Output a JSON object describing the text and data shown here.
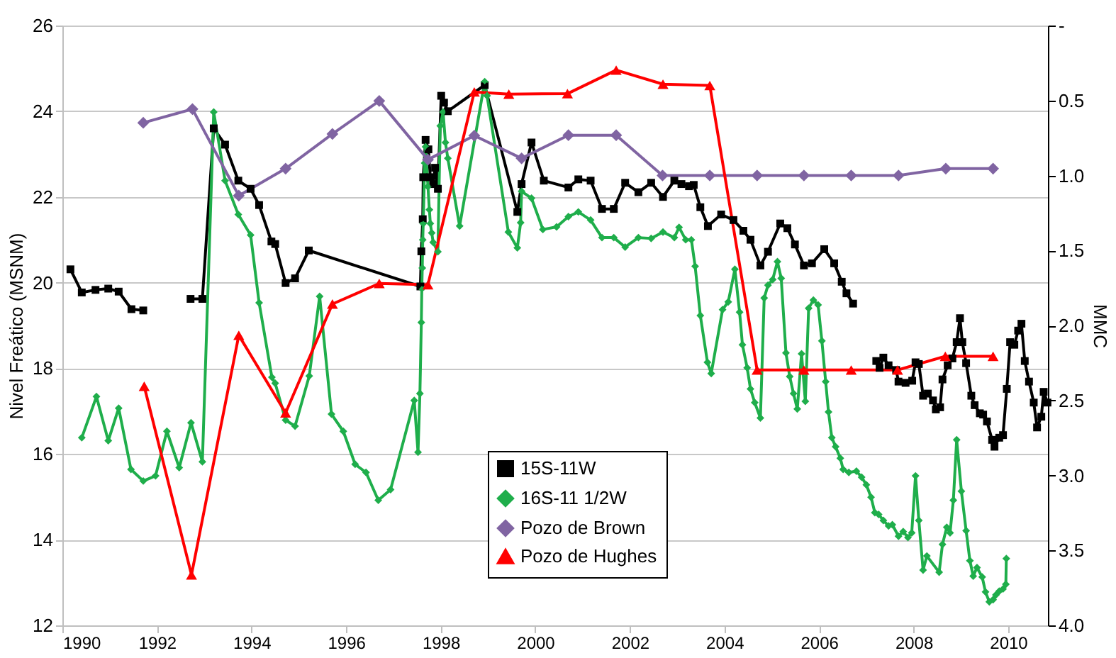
{
  "chart_data": {
    "type": "line",
    "ylabel": "Nivel Freático (MSNM)",
    "y2label": "MMC",
    "xlim": [
      1990,
      2010.84
    ],
    "xticks": [
      1990,
      1992,
      1994,
      1996,
      1998,
      2000,
      2002,
      2004,
      2006,
      2008,
      2010
    ],
    "ylim": [
      12,
      26
    ],
    "yticks": [
      12,
      14,
      16,
      18,
      20,
      22,
      24,
      26
    ],
    "y2lim": [
      4,
      0
    ],
    "y2ticks": [
      {
        "value": 0,
        "label": "-"
      },
      0.5,
      {
        "value": 1,
        "label": "1.0"
      },
      1.5,
      {
        "value": 2,
        "label": "2.0"
      },
      2.5,
      {
        "value": 3,
        "label": "3.0"
      },
      3.5,
      {
        "value": 4,
        "label": "4.0"
      }
    ],
    "grid": "y",
    "legend": "bottom",
    "series": [
      {
        "name": "15S-11W",
        "color": "#000000",
        "marker": "square",
        "x": [
          1990.17,
          1990.41,
          1990.7,
          1990.97,
          1991.19,
          1991.46,
          1991.71,
          1992.2,
          1992.71,
          1992.96,
          1993.2,
          1993.44,
          1993.72,
          1993.98,
          1994.16,
          1994.42,
          1994.5,
          1994.72,
          1994.92,
          1995.21,
          1997.57,
          1997.59,
          1997.62,
          1997.63,
          1997.68,
          1997.74,
          1997.78,
          1997.84,
          1997.88,
          1997.94,
          1998.01,
          1998.07,
          1998.15,
          1998.93,
          1999.62,
          1999.71,
          1999.92,
          2000.18,
          2000.7,
          2000.91,
          2001.17,
          2001.41,
          2001.66,
          2001.9,
          2002.18,
          2002.45,
          2002.7,
          2002.94,
          2003.09,
          2003.25,
          2003.35,
          2003.49,
          2003.65,
          2003.93,
          2004.19,
          2004.4,
          2004.55,
          2004.76,
          2004.92,
          2005.18,
          2005.33,
          2005.49,
          2005.68,
          2005.85,
          2006.11,
          2006.32,
          2006.48,
          2006.58,
          2006.72,
          2007.0,
          2007.21,
          2007.28,
          2007.36,
          2007.47,
          2007.63,
          2007.68,
          2007.83,
          2007.97,
          2008.04,
          2008.11,
          2008.2,
          2008.3,
          2008.41,
          2008.47,
          2008.56,
          2008.61,
          2008.72,
          2008.82,
          2008.91,
          2008.98,
          2009.03,
          2009.11,
          2009.22,
          2009.29,
          2009.4,
          2009.47,
          2009.55,
          2009.66,
          2009.71,
          2009.81,
          2009.89,
          2009.97,
          2010.04,
          2010.13,
          2010.21,
          2010.28,
          2010.35,
          2010.44,
          2010.54,
          2010.61,
          2010.7,
          2010.75,
          2010.83
        ],
        "values": [
          20.31,
          19.77,
          19.83,
          19.86,
          19.79,
          19.38,
          19.35,
          null,
          19.62,
          19.62,
          23.6,
          23.22,
          22.38,
          22.19,
          21.81,
          20.96,
          20.9,
          19.99,
          20.1,
          20.75,
          19.91,
          20.73,
          21.48,
          22.46,
          23.33,
          23.11,
          22.46,
          22.3,
          22.68,
          22.19,
          24.36,
          24.2,
          24.0,
          24.61,
          21.65,
          22.3,
          23.27,
          22.38,
          22.22,
          22.41,
          22.38,
          21.72,
          21.72,
          22.33,
          22.11,
          22.33,
          22.0,
          22.38,
          22.3,
          22.25,
          22.28,
          21.76,
          21.32,
          21.59,
          21.46,
          21.21,
          21.0,
          20.4,
          20.72,
          21.38,
          21.27,
          20.89,
          20.4,
          20.45,
          20.78,
          20.45,
          20.02,
          19.75,
          19.51,
          null,
          18.17,
          18.01,
          18.25,
          18.07,
          17.96,
          17.69,
          17.66,
          17.71,
          18.14,
          18.1,
          17.36,
          17.41,
          17.25,
          17.04,
          17.09,
          17.74,
          18.07,
          18.23,
          18.61,
          19.17,
          18.61,
          18.12,
          17.36,
          17.14,
          16.95,
          16.92,
          16.76,
          16.33,
          16.17,
          16.38,
          16.44,
          17.52,
          18.61,
          18.55,
          18.88,
          19.04,
          18.17,
          17.69,
          17.2,
          16.62,
          16.87,
          17.45,
          17.2
        ]
      },
      {
        "name": "16S-11 1/2W",
        "color": "#1fae4b",
        "marker": "diamond",
        "x": [
          1990.41,
          1990.72,
          1990.97,
          1991.19,
          1991.45,
          1991.71,
          1991.97,
          1992.21,
          1992.47,
          1992.72,
          1992.96,
          1993.2,
          1993.44,
          1993.72,
          1993.98,
          1994.16,
          1994.43,
          1994.5,
          1994.72,
          1994.92,
          1995.22,
          1995.44,
          1995.69,
          1995.94,
          1996.19,
          1996.42,
          1996.68,
          1996.94,
          1997.44,
          1997.52,
          1997.56,
          1997.59,
          1997.6,
          1997.61,
          1997.62,
          1997.63,
          1997.66,
          1997.68,
          1997.73,
          1997.76,
          1997.78,
          1997.81,
          1997.84,
          1997.94,
          1997.99,
          1998.05,
          1998.1,
          1998.15,
          1998.4,
          1998.93,
          1998.98,
          1999.43,
          1999.62,
          1999.69,
          1999.71,
          1999.92,
          2000.16,
          2000.45,
          2000.7,
          2000.91,
          2001.17,
          2001.41,
          2001.66,
          2001.9,
          2002.18,
          2002.45,
          2002.7,
          2002.94,
          2003.04,
          2003.18,
          2003.3,
          2003.38,
          2003.49,
          2003.64,
          2003.72,
          2003.96,
          2004.08,
          2004.22,
          2004.32,
          2004.38,
          2004.48,
          2004.55,
          2004.64,
          2004.76,
          2004.84,
          2004.92,
          2005.02,
          2005.12,
          2005.2,
          2005.3,
          2005.38,
          2005.46,
          2005.54,
          2005.63,
          2005.71,
          2005.78,
          2005.88,
          2005.98,
          2006.06,
          2006.14,
          2006.2,
          2006.27,
          2006.35,
          2006.45,
          2006.51,
          2006.63,
          2006.79,
          2006.9,
          2007.0,
          2007.1,
          2007.18,
          2007.26,
          2007.36,
          2007.47,
          2007.55,
          2007.68,
          2007.78,
          2007.88,
          2007.96,
          2008.04,
          2008.11,
          2008.2,
          2008.28,
          2008.54,
          2008.61,
          2008.7,
          2008.77,
          2008.84,
          2008.91,
          2009.01,
          2009.11,
          2009.19,
          2009.26,
          2009.34,
          2009.45,
          2009.52,
          2009.6,
          2009.68,
          2009.74,
          2009.81,
          2009.89,
          2009.95,
          2009.96
        ],
        "values": [
          16.38,
          17.34,
          16.31,
          17.07,
          15.64,
          15.37,
          15.49,
          16.53,
          15.68,
          16.73,
          15.82,
          23.98,
          22.38,
          21.59,
          21.11,
          19.53,
          17.79,
          17.65,
          16.79,
          16.65,
          17.82,
          19.68,
          16.93,
          16.53,
          15.76,
          15.57,
          14.92,
          15.17,
          17.25,
          16.04,
          17.41,
          19.07,
          19.86,
          20.34,
          21.0,
          21.38,
          22.79,
          23.17,
          22.24,
          21.7,
          21.38,
          21.16,
          20.94,
          20.72,
          23.66,
          23.98,
          23.27,
          22.9,
          21.32,
          24.69,
          24.36,
          21.18,
          20.81,
          21.4,
          22.13,
          21.97,
          21.24,
          21.3,
          21.54,
          21.65,
          21.46,
          21.05,
          21.05,
          20.83,
          21.05,
          21.03,
          21.18,
          21.05,
          21.29,
          21.0,
          21.0,
          20.38,
          19.23,
          18.14,
          17.88,
          19.37,
          19.55,
          20.31,
          19.31,
          18.55,
          18.01,
          17.52,
          17.2,
          16.84,
          19.64,
          19.94,
          20.07,
          20.49,
          20.1,
          18.36,
          17.81,
          17.41,
          17.05,
          18.34,
          17.23,
          19.4,
          19.59,
          19.48,
          18.64,
          17.69,
          16.98,
          16.38,
          16.17,
          15.9,
          15.64,
          15.57,
          15.6,
          15.46,
          15.28,
          14.99,
          14.63,
          14.59,
          14.45,
          14.32,
          14.35,
          14.08,
          14.19,
          14.05,
          14.16,
          15.49,
          14.45,
          13.29,
          13.62,
          13.24,
          13.89,
          14.29,
          14.16,
          14.92,
          16.33,
          15.13,
          14.21,
          13.51,
          13.15,
          13.35,
          13.13,
          12.78,
          12.55,
          12.6,
          12.71,
          12.8,
          12.85,
          12.96,
          13.56
        ]
      },
      {
        "name": "Pozo de Brown",
        "color": "#8064a2",
        "marker": "diamond",
        "x": [
          1991.71,
          1992.75,
          1993.73,
          1994.72,
          1995.71,
          1996.7,
          1997.73,
          1998.71,
          1999.71,
          2000.7,
          2001.71,
          2002.69,
          2003.69,
          2004.69,
          2005.68,
          2006.68,
          2007.68,
          2008.68,
          2009.68
        ],
        "values": [
          23.73,
          24.05,
          22.03,
          22.66,
          23.47,
          24.24,
          22.87,
          23.43,
          22.9,
          23.44,
          23.44,
          22.5,
          22.5,
          22.5,
          22.5,
          22.5,
          22.5,
          22.66,
          22.66
        ]
      },
      {
        "name": "Pozo de Hughes",
        "color": "#ff0000",
        "marker": "triangle",
        "x": [
          1991.73,
          1992.73,
          1993.73,
          1994.72,
          1995.71,
          1996.7,
          1997.73,
          1998.71,
          1999.44,
          2000.68,
          2001.71,
          2002.7,
          2003.69,
          2004.69,
          2005.68,
          2006.68,
          2007.66,
          2008.67,
          2009.68
        ],
        "values": [
          17.58,
          13.18,
          18.77,
          16.96,
          19.5,
          19.98,
          19.95,
          24.45,
          24.4,
          24.41,
          24.96,
          24.63,
          24.6,
          17.96,
          17.96,
          17.96,
          17.96,
          18.28,
          18.28
        ]
      }
    ]
  }
}
